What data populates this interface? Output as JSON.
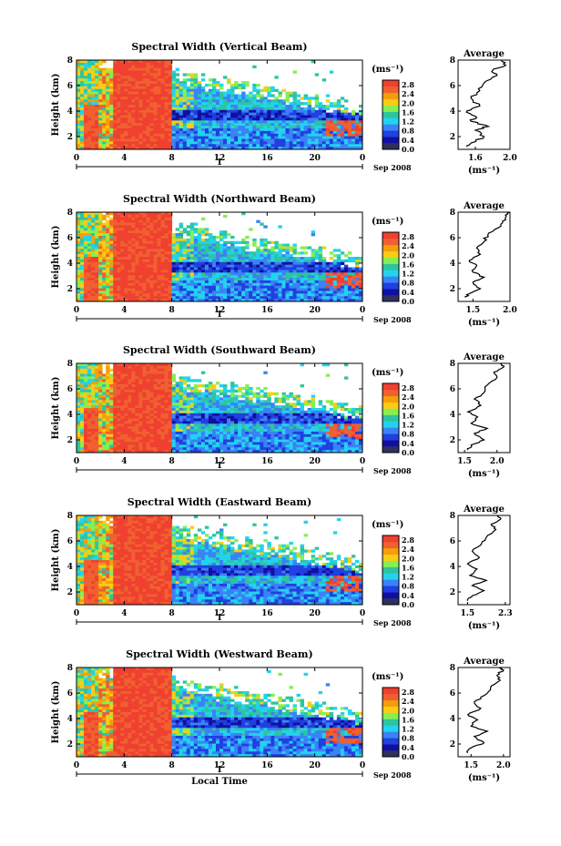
{
  "figure": {
    "xlabel": "Local Time",
    "date_label": "Sep 2008",
    "day_tick_label": "1",
    "units": "(ms⁻¹)",
    "average_title": "Average",
    "average_xlabel": "(ms⁻¹)"
  },
  "colors": {
    "colormap": [
      "#303060",
      "#1010a0",
      "#2040e0",
      "#3b82f6",
      "#22d3ee",
      "#2ec4a0",
      "#86ef52",
      "#facc15",
      "#f59e0b",
      "#f06030",
      "#ef4030"
    ]
  },
  "chart_data": [
    {
      "type": "heatmap",
      "title": "Spectral Width (Vertical Beam)",
      "xlabel": "",
      "ylabel": "Height (km)",
      "xlim": [
        0,
        24
      ],
      "ylim": [
        1,
        8
      ],
      "x_ticks": [
        "0",
        "4",
        "8",
        "12",
        "16",
        "20",
        "0"
      ],
      "y_ticks": [
        "2",
        "4",
        "6",
        "8"
      ],
      "colorbar": {
        "ticks": [
          "0.0",
          "0.4",
          "0.8",
          "1.2",
          "1.6",
          "2.0",
          "2.4",
          "2.8"
        ],
        "range": [
          0,
          3.0
        ]
      },
      "average": {
        "xlim": [
          1.4,
          2.0
        ],
        "x_ticks": [
          "1.6",
          "2.0"
        ],
        "y_ticks": [
          "2",
          "4",
          "6",
          "8"
        ],
        "profile": [
          [
            1.5,
            1.2
          ],
          [
            1.55,
            1.5
          ],
          [
            1.7,
            2.0
          ],
          [
            1.6,
            2.5
          ],
          [
            1.75,
            2.8
          ],
          [
            1.55,
            3.2
          ],
          [
            1.6,
            3.6
          ],
          [
            1.5,
            4.0
          ],
          [
            1.65,
            4.4
          ],
          [
            1.55,
            5.0
          ],
          [
            1.65,
            5.6
          ],
          [
            1.7,
            6.2
          ],
          [
            1.85,
            6.8
          ],
          [
            1.8,
            7.2
          ],
          [
            1.95,
            7.6
          ],
          [
            1.9,
            8.0
          ]
        ]
      }
    },
    {
      "type": "heatmap",
      "title": "Spectral Width (Northward Beam)",
      "xlabel": "",
      "ylabel": "Height (km)",
      "xlim": [
        0,
        24
      ],
      "ylim": [
        1,
        8
      ],
      "x_ticks": [
        "0",
        "4",
        "8",
        "12",
        "16",
        "20",
        "0"
      ],
      "y_ticks": [
        "2",
        "4",
        "6",
        "8"
      ],
      "colorbar": {
        "ticks": [
          "0.0",
          "0.4",
          "0.8",
          "1.2",
          "1.6",
          "2.0",
          "2.4",
          "2.8"
        ],
        "range": [
          0,
          3.0
        ]
      },
      "average": {
        "xlim": [
          1.3,
          2.0
        ],
        "x_ticks": [
          "1.5",
          "2.0"
        ],
        "y_ticks": [
          "2",
          "4",
          "6",
          "8"
        ],
        "profile": [
          [
            1.4,
            1.3
          ],
          [
            1.45,
            1.6
          ],
          [
            1.6,
            2.0
          ],
          [
            1.5,
            2.5
          ],
          [
            1.65,
            2.9
          ],
          [
            1.5,
            3.3
          ],
          [
            1.55,
            3.8
          ],
          [
            1.45,
            4.2
          ],
          [
            1.6,
            4.7
          ],
          [
            1.55,
            5.2
          ],
          [
            1.65,
            5.7
          ],
          [
            1.7,
            6.2
          ],
          [
            1.85,
            6.8
          ],
          [
            1.9,
            7.3
          ],
          [
            1.95,
            7.7
          ],
          [
            2.0,
            8.0
          ]
        ]
      }
    },
    {
      "type": "heatmap",
      "title": "Spectral Width (Southward Beam)",
      "xlabel": "",
      "ylabel": "Height (km)",
      "xlim": [
        0,
        24
      ],
      "ylim": [
        1,
        8
      ],
      "x_ticks": [
        "0",
        "4",
        "8",
        "12",
        "16",
        "20",
        "0"
      ],
      "y_ticks": [
        "2",
        "4",
        "6",
        "8"
      ],
      "colorbar": {
        "ticks": [
          "0.0",
          "0.4",
          "0.8",
          "1.2",
          "1.6",
          "2.0",
          "2.4",
          "2.8"
        ],
        "range": [
          0,
          3.0
        ]
      },
      "average": {
        "xlim": [
          1.4,
          2.2
        ],
        "x_ticks": [
          "1.5",
          "2.0"
        ],
        "y_ticks": [
          "2",
          "4",
          "6",
          "8"
        ],
        "profile": [
          [
            1.55,
            1.2
          ],
          [
            1.6,
            1.6
          ],
          [
            1.8,
            2.0
          ],
          [
            1.65,
            2.5
          ],
          [
            1.85,
            2.9
          ],
          [
            1.6,
            3.3
          ],
          [
            1.7,
            3.8
          ],
          [
            1.55,
            4.2
          ],
          [
            1.75,
            4.7
          ],
          [
            1.65,
            5.2
          ],
          [
            1.8,
            5.7
          ],
          [
            1.85,
            6.3
          ],
          [
            2.0,
            6.9
          ],
          [
            1.95,
            7.3
          ],
          [
            2.1,
            7.7
          ],
          [
            2.05,
            8.0
          ]
        ]
      }
    },
    {
      "type": "heatmap",
      "title": "Spectral Width (Eastward Beam)",
      "xlabel": "",
      "ylabel": "Height (km)",
      "xlim": [
        0,
        24
      ],
      "ylim": [
        1,
        8
      ],
      "x_ticks": [
        "0",
        "4",
        "8",
        "12",
        "16",
        "20",
        "0"
      ],
      "y_ticks": [
        "2",
        "4",
        "6",
        "8"
      ],
      "colorbar": {
        "ticks": [
          "0.0",
          "0.4",
          "0.8",
          "1.2",
          "1.6",
          "2.0",
          "2.4",
          "2.8"
        ],
        "range": [
          0,
          3.0
        ]
      },
      "average": {
        "xlim": [
          1.3,
          2.4
        ],
        "x_ticks": [
          "1.5",
          "2.3"
        ],
        "y_ticks": [
          "2",
          "4",
          "6",
          "8"
        ],
        "profile": [
          [
            1.5,
            1.3
          ],
          [
            1.6,
            1.7
          ],
          [
            1.85,
            2.1
          ],
          [
            1.6,
            2.5
          ],
          [
            1.9,
            2.9
          ],
          [
            1.55,
            3.3
          ],
          [
            1.7,
            3.8
          ],
          [
            1.5,
            4.2
          ],
          [
            1.75,
            4.7
          ],
          [
            1.6,
            5.2
          ],
          [
            1.8,
            5.8
          ],
          [
            1.9,
            6.3
          ],
          [
            2.1,
            6.9
          ],
          [
            2.0,
            7.3
          ],
          [
            2.2,
            7.7
          ],
          [
            2.15,
            8.0
          ]
        ]
      }
    },
    {
      "type": "heatmap",
      "title": "Spectral Width (Westward Beam)",
      "xlabel": "Local Time",
      "ylabel": "Height (km)",
      "xlim": [
        0,
        24
      ],
      "ylim": [
        1,
        8
      ],
      "x_ticks": [
        "0",
        "4",
        "8",
        "12",
        "16",
        "20",
        "0"
      ],
      "y_ticks": [
        "2",
        "4",
        "6",
        "8"
      ],
      "colorbar": {
        "ticks": [
          "0.0",
          "0.4",
          "0.8",
          "1.2",
          "1.6",
          "2.0",
          "2.4",
          "2.8"
        ],
        "range": [
          0,
          3.0
        ]
      },
      "average": {
        "xlim": [
          1.3,
          2.1
        ],
        "x_ticks": [
          "1.5",
          "2.0"
        ],
        "y_ticks": [
          "2",
          "4",
          "6",
          "8"
        ],
        "profile": [
          [
            1.45,
            1.3
          ],
          [
            1.5,
            1.7
          ],
          [
            1.7,
            2.1
          ],
          [
            1.55,
            2.6
          ],
          [
            1.75,
            3.0
          ],
          [
            1.5,
            3.4
          ],
          [
            1.6,
            3.9
          ],
          [
            1.45,
            4.3
          ],
          [
            1.65,
            4.8
          ],
          [
            1.55,
            5.3
          ],
          [
            1.7,
            5.8
          ],
          [
            1.8,
            6.4
          ],
          [
            1.95,
            7.0
          ],
          [
            1.9,
            7.4
          ],
          [
            2.0,
            7.8
          ],
          [
            1.95,
            8.0
          ]
        ]
      }
    }
  ]
}
